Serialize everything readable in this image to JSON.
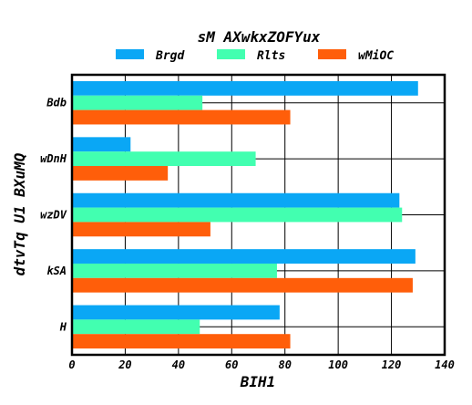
{
  "chart_data": {
    "type": "bar",
    "orientation": "horizontal",
    "title": "sM AXwkxZOFYux",
    "xlabel": "BIH1",
    "ylabel": "dtvTq U1 BXuMQ",
    "categories": [
      "Bdb",
      "wDnH",
      "wzDV",
      "kSA",
      "H"
    ],
    "series": [
      {
        "name": "Brgd",
        "color": "#0aa7f5",
        "values": [
          130,
          22,
          123,
          129,
          78
        ]
      },
      {
        "name": "Rlts",
        "color": "#42ffb0",
        "values": [
          49,
          69,
          124,
          77,
          48
        ]
      },
      {
        "name": "wMiOC",
        "color": "#ff5e0a",
        "values": [
          82,
          36,
          52,
          128,
          82
        ]
      }
    ],
    "xlim": [
      0,
      140
    ],
    "xticks": [
      0,
      20,
      40,
      60,
      80,
      100,
      120,
      140
    ],
    "grid": true,
    "legend_position": "top"
  }
}
